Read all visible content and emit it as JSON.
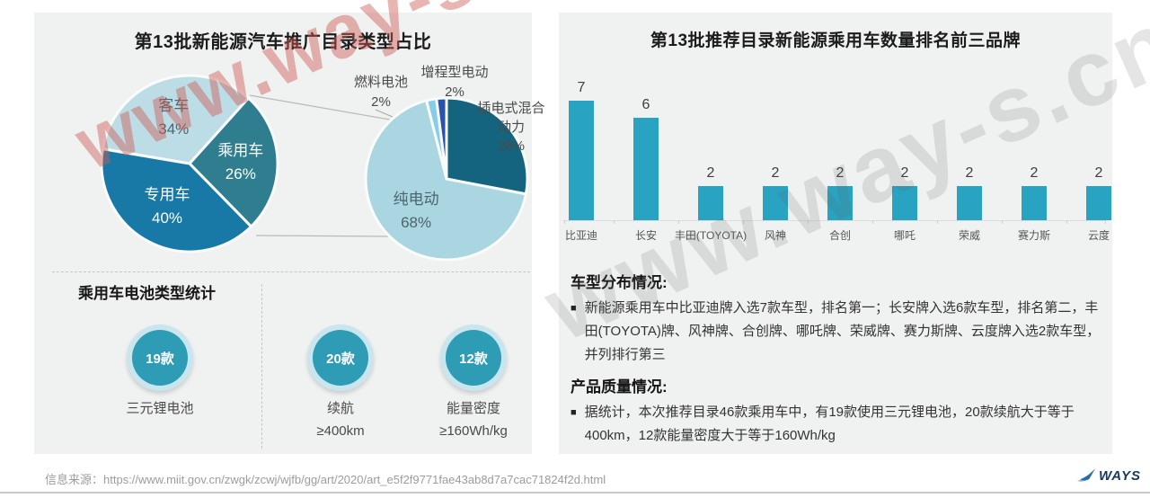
{
  "watermark": {
    "text": "www.way-s.cn"
  },
  "page": {
    "background": "#ffffff",
    "panel_background": "#f0f1f1"
  },
  "left_panel": {
    "battery": {
      "heading": "乘用车电池类型统计",
      "circle_color": "#2e9cb5",
      "ring_color": "#c9e6ee",
      "stats": [
        {
          "value": "19款",
          "label_lines": [
            "三元锂电池"
          ]
        },
        {
          "value": "20款",
          "label_lines": [
            "续航",
            "≥400km"
          ]
        },
        {
          "value": "12款",
          "label_lines": [
            "能量密度",
            "≥160Wh/kg"
          ]
        }
      ]
    }
  },
  "right_panel": {
    "bullet_marker": "■",
    "sections": [
      {
        "heading": "车型分布情况:",
        "bullet": "新能源乘用车中比亚迪牌入选7款车型，排名第一；长安牌入选6款车型，排名第二，丰田(TOYOTA)牌、风神牌、合创牌、哪吒牌、荣威牌、赛力斯牌、云度牌入选2款车型，并列排行第三"
      },
      {
        "heading": "产品质量情况:",
        "bullet": "据统计，本次推荐目录46款乘用车中，有19款使用三元锂电池，20款续航大于等于400km，12款能量密度大于等于160Wh/kg"
      }
    ]
  },
  "footer": {
    "source_label": "信息来源：",
    "source_url": "https://www.miit.gov.cn/zwgk/zcwj/wjfb/gg/art/2020/art_e5f2f9771fae43ab8d7a7cac71824f2d.html",
    "brand": "WAYS"
  },
  "chart_data": [
    {
      "type": "pie",
      "title": "第13批新能源汽车推广目录类型占比",
      "unit": "%",
      "start_angle_deg": 279.6,
      "slices": [
        {
          "label": "客车",
          "pct": 34,
          "pct_label": "34%",
          "color": "#bddde6"
        },
        {
          "label": "乘用车",
          "pct": 26,
          "pct_label": "26%",
          "color": "#2e7e90"
        },
        {
          "label": "专用车",
          "pct": 40,
          "pct_label": "40%",
          "color": "#1879a6"
        }
      ]
    },
    {
      "type": "pie",
      "unit": "%",
      "start_angle_deg": 0,
      "slices": [
        {
          "label": "插电式混合动力",
          "label_lines": [
            "插电式混合",
            "动力"
          ],
          "pct": 28,
          "pct_label": "28%",
          "color": "#15647f"
        },
        {
          "label": "纯电动",
          "pct": 68,
          "pct_label": "68%",
          "color": "#a9d6e0"
        },
        {
          "label": "燃料电池",
          "pct": 2,
          "pct_label": "2%",
          "color": "#86cdec"
        },
        {
          "label": "增程型电动",
          "pct": 2,
          "pct_label": "2%",
          "color": "#2b52a8"
        }
      ]
    },
    {
      "type": "bar",
      "title": "第13批推荐目录新能源乘用车数量排名前三品牌",
      "categories": [
        "比亚迪",
        "长安",
        "丰田(TOYOTA)",
        "风神",
        "合创",
        "哪吒",
        "荣威",
        "赛力斯",
        "云度"
      ],
      "values": [
        7,
        6,
        2,
        2,
        2,
        2,
        2,
        2,
        2
      ],
      "bar_color": "#28a3c1",
      "ylim": [
        0,
        8
      ],
      "value_labels": true,
      "legend": "none",
      "grid": false
    }
  ]
}
